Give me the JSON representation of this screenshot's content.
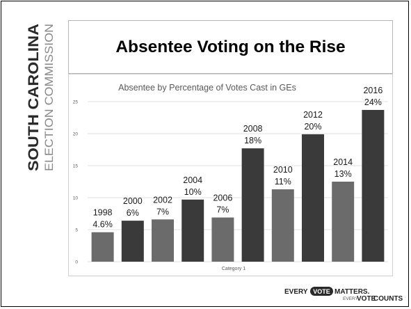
{
  "brand": {
    "state": "SOUTH CAROLINA",
    "agency": "ELECTION COMMISSION"
  },
  "slide": {
    "title": "Absentee Voting on the Rise"
  },
  "footer": {
    "every": "EVERY",
    "vote": "VOTE",
    "matters": "MATTERS.",
    "every2": "EVERY",
    "vote2": "VOTE",
    "counts": "COUNTS."
  },
  "colors": {
    "bar_dark": "#3a3a3a",
    "bar_mid": "#6b6b6b",
    "gridline": "#e2e2e2",
    "text": "#595959"
  },
  "chart_data": {
    "type": "bar",
    "title": "Absentee by Percentage of Votes Cast in GEs",
    "xlabel": "Category 1",
    "ylabel": "",
    "ylim": [
      0,
      25
    ],
    "yticks": [
      0,
      5,
      10,
      15,
      20,
      25
    ],
    "grid": true,
    "categories": [
      "1998",
      "2000",
      "2002",
      "2004",
      "2006",
      "2008",
      "2010",
      "2012",
      "2014",
      "2016"
    ],
    "values": [
      4.6,
      6.4,
      6.6,
      9.7,
      6.9,
      17.7,
      11.3,
      19.9,
      12.5,
      23.7
    ],
    "data_labels": [
      "4.6%",
      "6%",
      "7%",
      "10%",
      "7%",
      "18%",
      "11%",
      "20%",
      "13%",
      "24%"
    ],
    "bar_shades": [
      "mid",
      "dark",
      "mid",
      "dark",
      "mid",
      "dark",
      "mid",
      "dark",
      "mid",
      "dark"
    ]
  }
}
